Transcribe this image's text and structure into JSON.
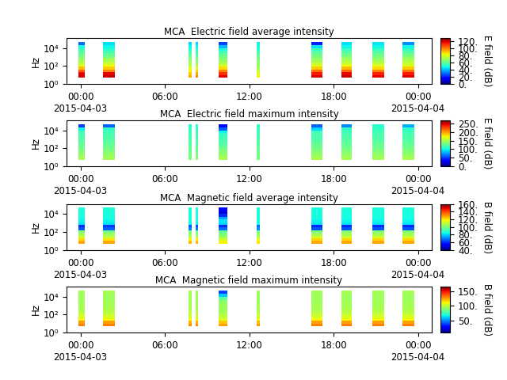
{
  "chart_data": [
    {
      "type": "heatmap",
      "title": "MCA  Electric field average intensity",
      "y_label": "Hz",
      "colorbar_label": "E field (dB)",
      "log": "y",
      "xlim": [
        -1.0,
        25.0
      ],
      "ylim": [
        1,
        130000
      ],
      "xticks": [
        {
          "value": 0,
          "label": "00:00\n2015-04-03"
        },
        {
          "value": 6,
          "label": "06:00"
        },
        {
          "value": 12,
          "label": "12:00"
        },
        {
          "value": 18,
          "label": "18:00"
        },
        {
          "value": 24,
          "label": "00:00\n2015-04-04"
        }
      ],
      "yticks": [
        {
          "value": 1,
          "label": "10⁰"
        },
        {
          "value": 100,
          "label": "10²"
        },
        {
          "value": 10000,
          "label": "10⁴"
        }
      ],
      "x": [
        [
          -0.17,
          0.28
        ],
        [
          1.58,
          2.43
        ],
        [
          7.7,
          7.92
        ],
        [
          8.21,
          8.38
        ],
        [
          9.85,
          10.47
        ],
        [
          12.56,
          12.73
        ],
        [
          16.41,
          17.2
        ],
        [
          18.56,
          19.3
        ],
        [
          20.77,
          21.62
        ],
        [
          22.92,
          23.77
        ]
      ],
      "y_bins": [
        5,
        10,
        20,
        40,
        80,
        160,
        320,
        640,
        1250,
        2500,
        5000,
        10000,
        20000,
        50000
      ],
      "cells": [
        [
          120,
          118,
          105,
          92,
          80,
          75,
          70,
          66,
          62,
          58,
          55,
          50,
          30
        ],
        [
          122,
          118,
          100,
          90,
          82,
          76,
          72,
          66,
          60,
          56,
          52,
          48,
          45
        ],
        [
          95,
          90,
          85,
          80,
          75,
          72,
          68,
          64,
          60,
          56,
          52,
          48,
          44
        ],
        [
          100,
          95,
          88,
          80,
          75,
          70,
          66,
          62,
          58,
          55,
          52,
          48,
          44
        ],
        [
          118,
          112,
          100,
          88,
          78,
          72,
          68,
          64,
          60,
          55,
          50,
          40,
          25
        ],
        [
          85,
          80,
          76,
          72,
          70,
          68,
          65,
          62,
          60,
          56,
          52,
          50,
          48
        ],
        [
          120,
          115,
          102,
          90,
          80,
          75,
          70,
          66,
          62,
          58,
          54,
          45,
          20
        ],
        [
          122,
          118,
          104,
          92,
          82,
          76,
          72,
          68,
          62,
          58,
          54,
          48,
          45
        ],
        [
          118,
          114,
          100,
          88,
          80,
          75,
          70,
          66,
          62,
          58,
          54,
          48,
          46
        ],
        [
          120,
          115,
          102,
          90,
          80,
          76,
          72,
          68,
          62,
          58,
          54,
          48,
          35
        ]
      ],
      "color_range": [
        0,
        130
      ],
      "color_ticks": [
        {
          "value": 0,
          "label": "0."
        },
        {
          "value": 20,
          "label": "20."
        },
        {
          "value": 40,
          "label": "40."
        },
        {
          "value": 60,
          "label": "60."
        },
        {
          "value": 80,
          "label": "80."
        },
        {
          "value": 100,
          "label": "100."
        },
        {
          "value": 120,
          "label": "120."
        }
      ]
    },
    {
      "type": "heatmap",
      "title": "MCA  Electric field maximum intensity",
      "y_label": "Hz",
      "colorbar_label": "E field (dB)",
      "log": "y",
      "xlim": [
        -1.0,
        25.0
      ],
      "ylim": [
        1,
        130000
      ],
      "xticks": [
        {
          "value": 0,
          "label": "00:00\n2015-04-03"
        },
        {
          "value": 6,
          "label": "06:00"
        },
        {
          "value": 12,
          "label": "12:00"
        },
        {
          "value": 18,
          "label": "18:00"
        },
        {
          "value": 24,
          "label": "00:00\n2015-04-04"
        }
      ],
      "yticks": [
        {
          "value": 1,
          "label": "10⁰"
        },
        {
          "value": 100,
          "label": "10²"
        },
        {
          "value": 10000,
          "label": "10⁴"
        }
      ],
      "x": [
        [
          -0.17,
          0.28
        ],
        [
          1.58,
          2.43
        ],
        [
          7.7,
          7.92
        ],
        [
          8.21,
          8.38
        ],
        [
          9.85,
          10.47
        ],
        [
          12.56,
          12.73
        ],
        [
          16.41,
          17.2
        ],
        [
          18.56,
          19.3
        ],
        [
          20.77,
          21.62
        ],
        [
          22.92,
          23.77
        ]
      ],
      "y_bins": [
        5,
        10,
        20,
        40,
        80,
        160,
        320,
        640,
        1250,
        2500,
        5000,
        10000,
        20000,
        50000
      ],
      "cells": [
        [
          150,
          145,
          140,
          135,
          130,
          128,
          125,
          122,
          120,
          118,
          115,
          100,
          50
        ],
        [
          148,
          145,
          140,
          135,
          130,
          128,
          125,
          122,
          120,
          118,
          115,
          112,
          60
        ],
        [
          135,
          132,
          130,
          128,
          126,
          124,
          122,
          120,
          118,
          116,
          114,
          110,
          105
        ],
        [
          140,
          136,
          132,
          128,
          126,
          124,
          122,
          120,
          118,
          116,
          114,
          110,
          105
        ],
        [
          150,
          145,
          140,
          135,
          130,
          125,
          120,
          118,
          115,
          110,
          100,
          60,
          30
        ],
        [
          135,
          132,
          130,
          128,
          126,
          124,
          122,
          120,
          118,
          116,
          114,
          112,
          110
        ],
        [
          150,
          145,
          140,
          135,
          130,
          128,
          125,
          122,
          120,
          118,
          115,
          90,
          60
        ],
        [
          148,
          145,
          140,
          135,
          130,
          128,
          125,
          122,
          120,
          118,
          115,
          110,
          70
        ],
        [
          148,
          145,
          140,
          135,
          130,
          128,
          125,
          122,
          120,
          118,
          115,
          112,
          108
        ],
        [
          150,
          145,
          140,
          135,
          130,
          128,
          125,
          122,
          120,
          118,
          115,
          110,
          80
        ]
      ],
      "color_range": [
        0,
        270
      ],
      "color_ticks": [
        {
          "value": 0,
          "label": "0."
        },
        {
          "value": 50,
          "label": "50."
        },
        {
          "value": 100,
          "label": "100."
        },
        {
          "value": 150,
          "label": "150."
        },
        {
          "value": 200,
          "label": "200."
        },
        {
          "value": 250,
          "label": "250."
        }
      ]
    },
    {
      "type": "heatmap",
      "title": "MCA  Magnetic field average intensity",
      "y_label": "Hz",
      "colorbar_label": "B field (dB)",
      "log": "y",
      "xlim": [
        -1.0,
        25.0
      ],
      "ylim": [
        1,
        130000
      ],
      "xticks": [
        {
          "value": 0,
          "label": "00:00\n2015-04-03"
        },
        {
          "value": 6,
          "label": "06:00"
        },
        {
          "value": 12,
          "label": "12:00"
        },
        {
          "value": 18,
          "label": "18:00"
        },
        {
          "value": 24,
          "label": "00:00\n2015-04-04"
        }
      ],
      "yticks": [
        {
          "value": 1,
          "label": "10⁰"
        },
        {
          "value": 100,
          "label": "10²"
        },
        {
          "value": 10000,
          "label": "10⁴"
        }
      ],
      "x": [
        [
          -0.17,
          0.28
        ],
        [
          1.58,
          2.43
        ],
        [
          7.7,
          7.92
        ],
        [
          8.21,
          8.38
        ],
        [
          9.85,
          10.47
        ],
        [
          12.56,
          12.73
        ],
        [
          16.41,
          17.2
        ],
        [
          18.56,
          19.3
        ],
        [
          20.77,
          21.62
        ],
        [
          22.92,
          23.77
        ]
      ],
      "y_bins": [
        5,
        10,
        20,
        40,
        80,
        160,
        320,
        640,
        1250,
        2500,
        5000,
        10000,
        20000,
        50000
      ],
      "cells": [
        [
          128,
          122,
          112,
          106,
          100,
          65,
          60,
          82,
          84,
          85,
          85,
          85,
          86
        ],
        [
          128,
          120,
          110,
          105,
          98,
          66,
          62,
          82,
          84,
          85,
          85,
          85,
          86
        ],
        [
          125,
          118,
          108,
          104,
          98,
          70,
          65,
          84,
          86,
          86,
          86,
          86,
          86
        ],
        [
          125,
          118,
          108,
          104,
          98,
          70,
          65,
          84,
          86,
          86,
          86,
          86,
          86
        ],
        [
          118,
          112,
          105,
          100,
          95,
          68,
          60,
          80,
          82,
          75,
          60,
          50,
          55
        ],
        [
          120,
          115,
          108,
          104,
          98,
          72,
          68,
          85,
          86,
          86,
          86,
          86,
          86
        ],
        [
          128,
          122,
          112,
          106,
          100,
          65,
          60,
          82,
          84,
          85,
          85,
          85,
          86
        ],
        [
          128,
          122,
          112,
          106,
          100,
          65,
          60,
          82,
          84,
          85,
          85,
          85,
          86
        ],
        [
          128,
          122,
          112,
          106,
          100,
          65,
          60,
          82,
          84,
          85,
          85,
          85,
          86
        ],
        [
          128,
          122,
          112,
          106,
          100,
          65,
          60,
          82,
          84,
          85,
          85,
          85,
          86
        ]
      ],
      "color_range": [
        40,
        160
      ],
      "color_ticks": [
        {
          "value": 40,
          "label": "40."
        },
        {
          "value": 60,
          "label": "60."
        },
        {
          "value": 80,
          "label": "80."
        },
        {
          "value": 100,
          "label": "100."
        },
        {
          "value": 120,
          "label": "120."
        },
        {
          "value": 140,
          "label": "140."
        },
        {
          "value": 160,
          "label": "160."
        }
      ]
    },
    {
      "type": "heatmap",
      "title": "MCA  Magnetic field maximum intensity",
      "y_label": "Hz",
      "colorbar_label": "B field (dB)",
      "log": "y",
      "xlim": [
        -1.0,
        25.0
      ],
      "ylim": [
        1,
        130000
      ],
      "xticks": [
        {
          "value": 0,
          "label": "00:00\n2015-04-03"
        },
        {
          "value": 6,
          "label": "06:00"
        },
        {
          "value": 12,
          "label": "12:00"
        },
        {
          "value": 18,
          "label": "18:00"
        },
        {
          "value": 24,
          "label": "00:00\n2015-04-04"
        }
      ],
      "yticks": [
        {
          "value": 1,
          "label": "10⁰"
        },
        {
          "value": 100,
          "label": "10²"
        },
        {
          "value": 10000,
          "label": "10⁴"
        }
      ],
      "x": [
        [
          -0.17,
          0.28
        ],
        [
          1.58,
          2.43
        ],
        [
          7.7,
          7.92
        ],
        [
          8.21,
          8.38
        ],
        [
          9.85,
          10.47
        ],
        [
          12.56,
          12.73
        ],
        [
          16.41,
          17.2
        ],
        [
          18.56,
          19.3
        ],
        [
          20.77,
          21.62
        ],
        [
          22.92,
          23.77
        ]
      ],
      "y_bins": [
        5,
        10,
        20,
        40,
        80,
        160,
        320,
        640,
        1250,
        2500,
        5000,
        10000,
        20000,
        50000
      ],
      "cells": [
        [
          130,
          125,
          110,
          105,
          100,
          98,
          96,
          95,
          95,
          94,
          94,
          94,
          95
        ],
        [
          130,
          125,
          110,
          105,
          100,
          98,
          96,
          95,
          95,
          94,
          94,
          94,
          95
        ],
        [
          128,
          122,
          108,
          104,
          100,
          98,
          96,
          95,
          95,
          94,
          94,
          94,
          95
        ],
        [
          128,
          122,
          108,
          104,
          100,
          98,
          96,
          95,
          95,
          94,
          94,
          94,
          95
        ],
        [
          125,
          118,
          105,
          100,
          96,
          95,
          94,
          94,
          92,
          88,
          80,
          60,
          40
        ],
        [
          126,
          120,
          108,
          104,
          100,
          98,
          96,
          95,
          95,
          94,
          94,
          94,
          95
        ],
        [
          130,
          125,
          110,
          105,
          100,
          98,
          96,
          95,
          95,
          94,
          94,
          94,
          95
        ],
        [
          130,
          125,
          110,
          105,
          100,
          98,
          96,
          95,
          95,
          94,
          94,
          94,
          95
        ],
        [
          130,
          125,
          110,
          105,
          100,
          98,
          96,
          95,
          95,
          94,
          94,
          94,
          95
        ],
        [
          130,
          125,
          110,
          105,
          100,
          98,
          96,
          95,
          95,
          94,
          94,
          94,
          95
        ]
      ],
      "color_range": [
        10,
        165
      ],
      "color_ticks": [
        {
          "value": 50,
          "label": "50."
        },
        {
          "value": 100,
          "label": "100."
        },
        {
          "value": 150,
          "label": "150."
        }
      ]
    }
  ]
}
